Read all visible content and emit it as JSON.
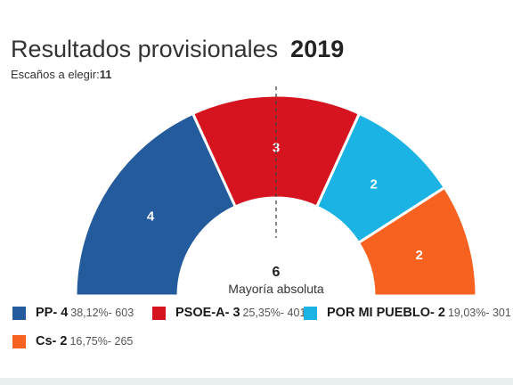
{
  "header": {
    "title": "Resultados provisionales",
    "year": "2019",
    "seats_label": "Escaños a elegir:",
    "seats_total": "11"
  },
  "majority": {
    "value": "6",
    "label": "Mayoría absoluta"
  },
  "colors": {
    "PP": "#245b9c",
    "PSOE-A": "#d5141f",
    "POR MI PUEBLO": "#1ab3e3",
    "Cs": "#f86220"
  },
  "legend": [
    {
      "name": "PP- 4",
      "stats": "38,12%- 603"
    },
    {
      "name": "PSOE-A- 3",
      "stats": "25,35%- 401"
    },
    {
      "name": "POR MI PUEBLO- 2",
      "stats": "19,03%- 301"
    },
    {
      "name": "Cs- 2",
      "stats": "16,75%- 265"
    }
  ],
  "chart_data": {
    "type": "pie",
    "variant": "hemicycle",
    "total_seats": 11,
    "majority": 6,
    "series": [
      {
        "name": "PP",
        "seats": 4,
        "percent": 38.12,
        "votes": 603,
        "color": "#245b9c"
      },
      {
        "name": "PSOE-A",
        "seats": 3,
        "percent": 25.35,
        "votes": 401,
        "color": "#d5141f"
      },
      {
        "name": "POR MI PUEBLO",
        "seats": 2,
        "percent": 19.03,
        "votes": 301,
        "color": "#1ab3e3"
      },
      {
        "name": "Cs",
        "seats": 2,
        "percent": 16.75,
        "votes": 265,
        "color": "#f86220"
      }
    ]
  }
}
